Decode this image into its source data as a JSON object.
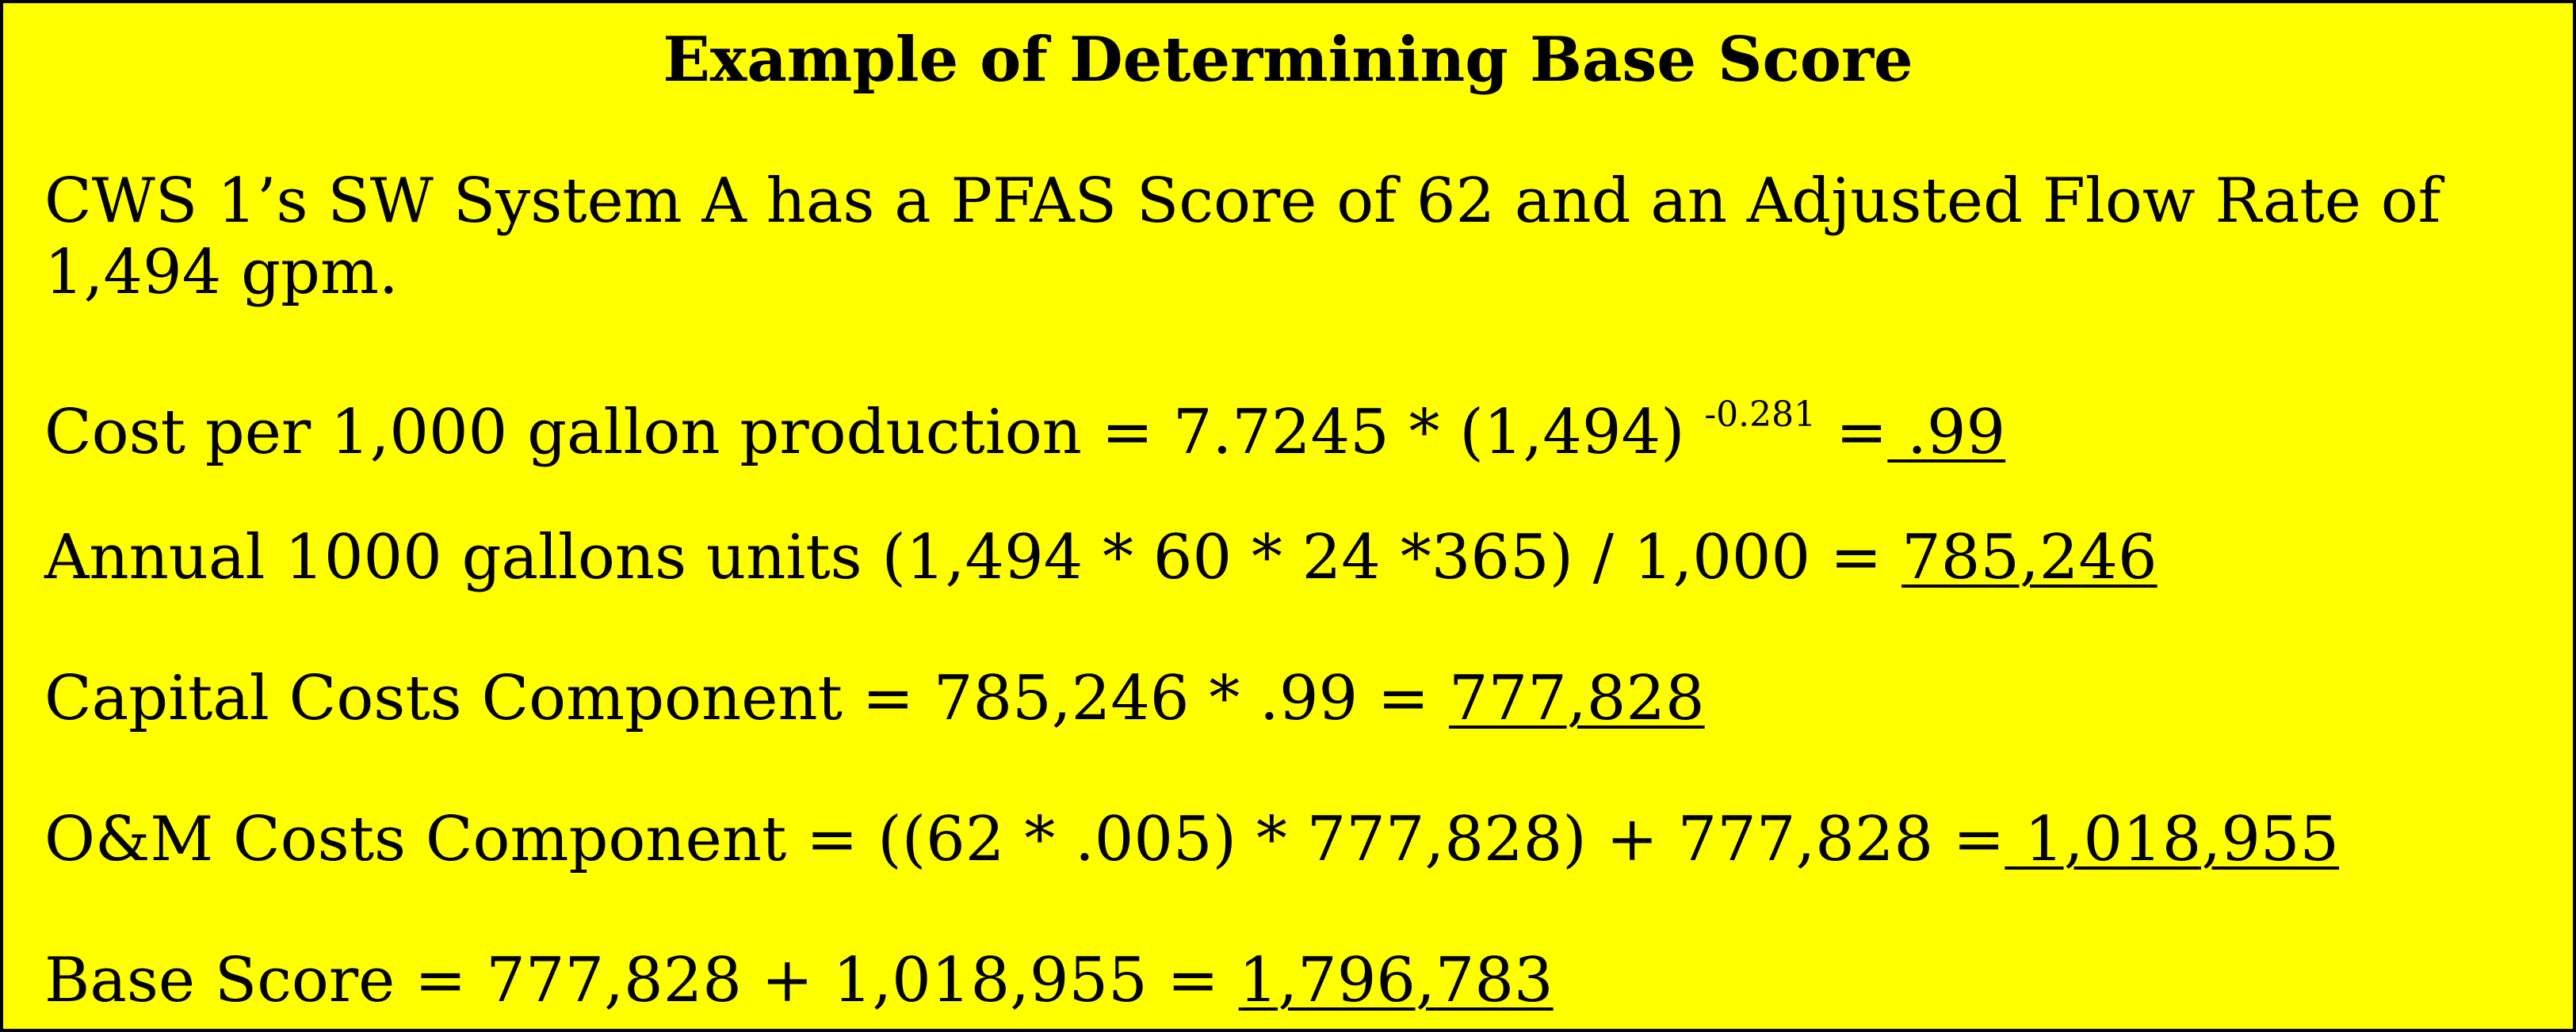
{
  "title": "Example of Determining Base Score",
  "intro": {
    "line1": "CWS 1’s SW System A has a PFAS Score of 62 and an Adjusted Flow Rate of",
    "line2": "1,494 gpm."
  },
  "cost_per_1000": {
    "prefix": "Cost per 1,000 gallon production = 7.7245 * (1,494) ",
    "exponent": "-0.281",
    "equals": " =",
    "result": " .99"
  },
  "annual_units": {
    "prefix": "Annual 1000 gallons units (1,494 * 60 * 24 *365) / 1,000 = ",
    "result": "785,246"
  },
  "capital_costs": {
    "prefix": "Capital Costs Component = 785,246 * .99 = ",
    "result": "777,828"
  },
  "om_costs": {
    "prefix": "O&M Costs Component = ((62 * .005) * 777,828) + 777,828 =",
    "result": " 1,018,955"
  },
  "base_score": {
    "prefix": "Base Score = 777,828 + 1,018,955 = ",
    "result": "1,796,783"
  },
  "colors": {
    "background": "#ffff00",
    "border": "#000000",
    "text": "#000000"
  }
}
